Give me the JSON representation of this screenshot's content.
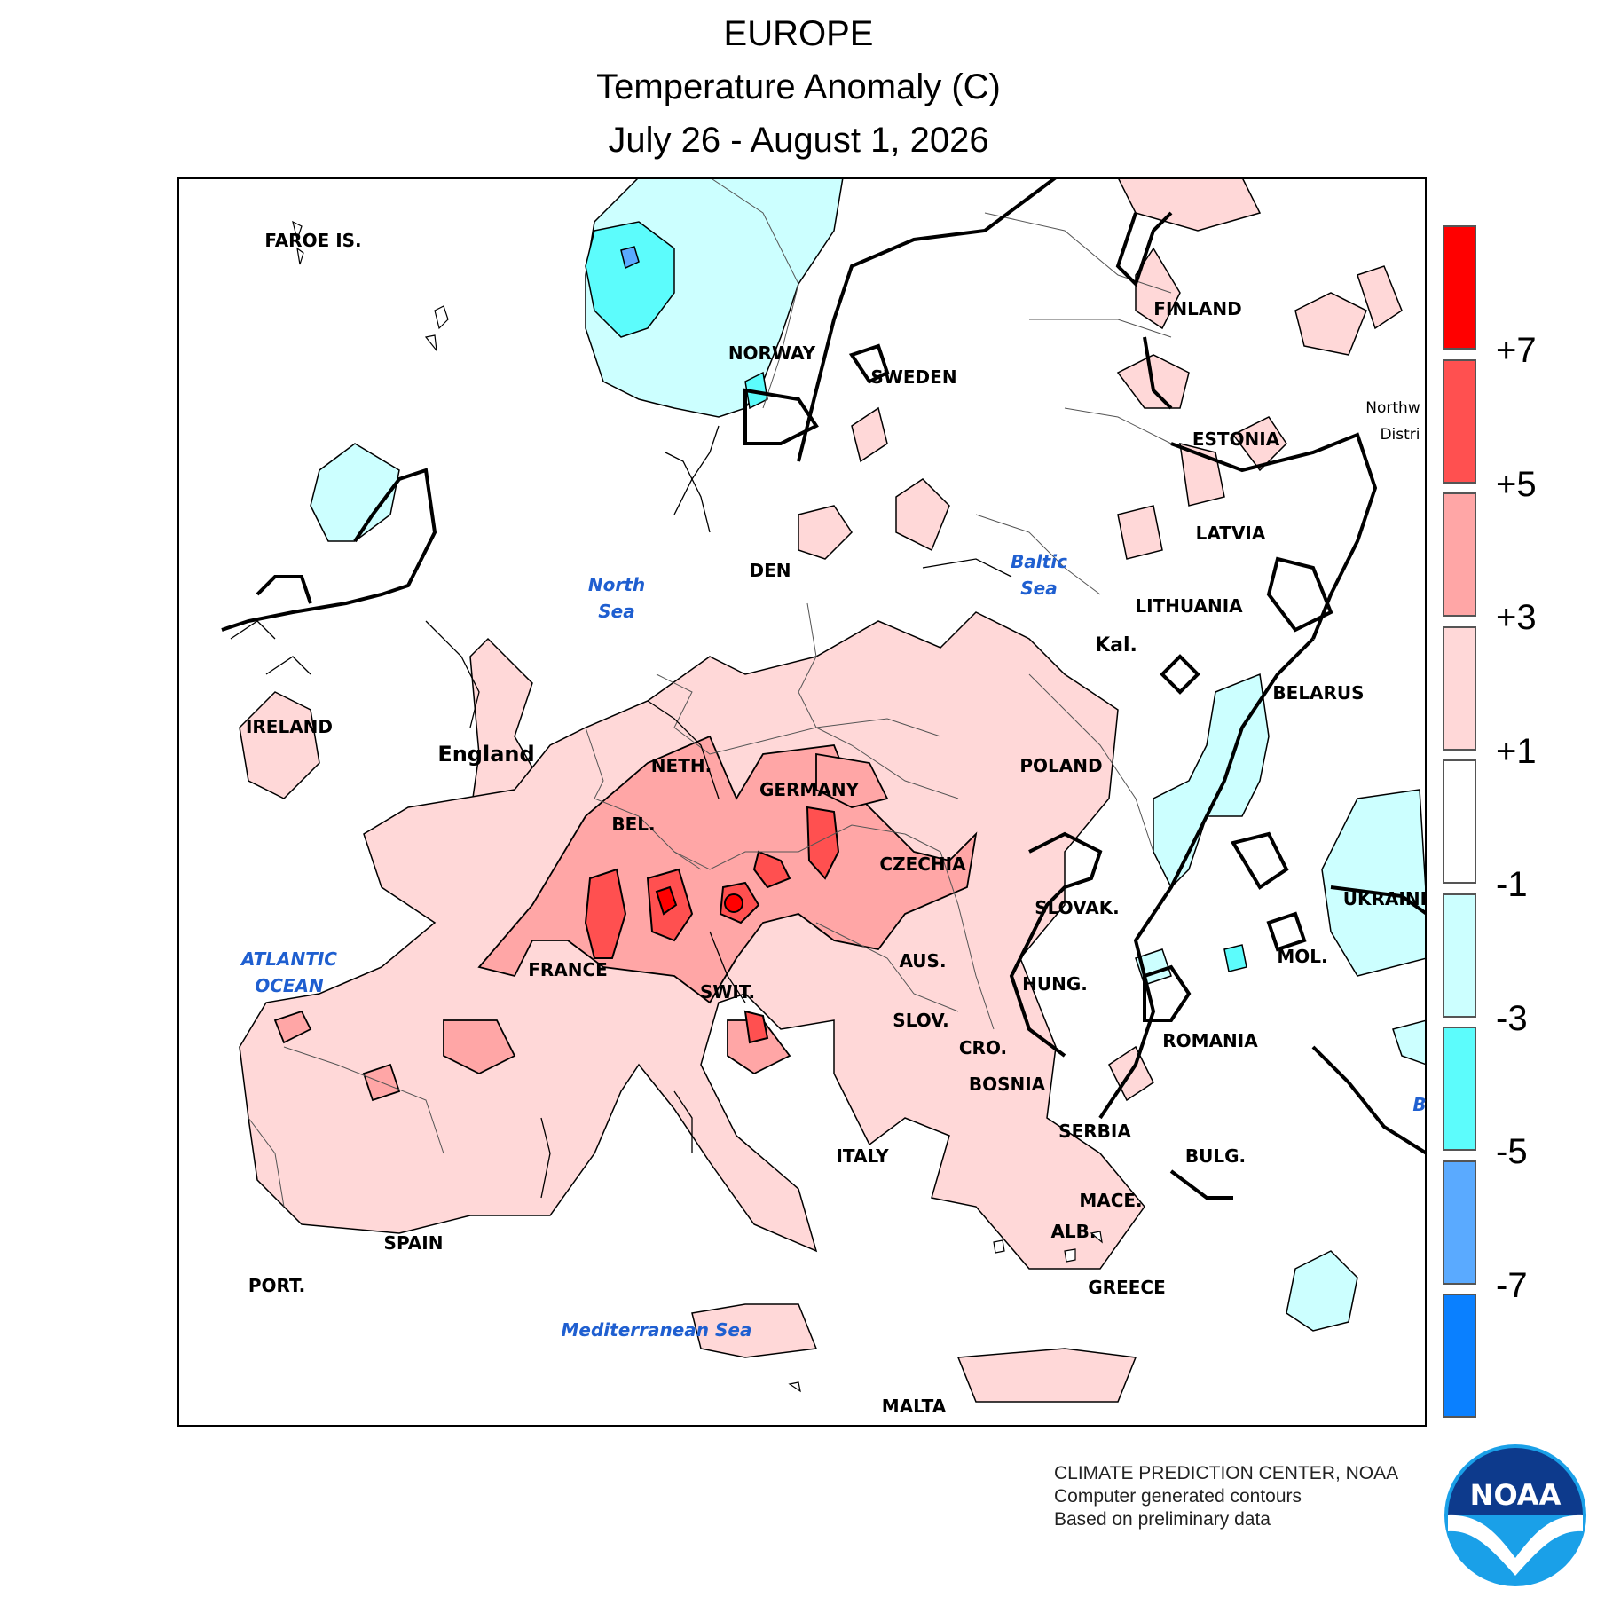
{
  "title": {
    "region": "EUROPE",
    "variable": "Temperature Anomaly (C)",
    "period": "July 26 - August 1, 2026"
  },
  "legend": {
    "bins": [
      {
        "color": "#ff0000"
      },
      {
        "color": "#ff5050"
      },
      {
        "color": "#ffa6a6"
      },
      {
        "color": "#ffd8d8"
      },
      {
        "color": "#ffffff"
      },
      {
        "color": "#ccffff"
      },
      {
        "color": "#5cfcfc"
      },
      {
        "color": "#5aaaff"
      },
      {
        "color": "#0a80ff"
      }
    ],
    "labels": [
      "+7",
      "+5",
      "+3",
      "+1",
      "-1",
      "-3",
      "-5",
      "-7"
    ]
  },
  "map_labels": {
    "faroe": "FAROE IS.",
    "norway": "NORWAY",
    "sweden": "SWEDEN",
    "finland": "FINLAND",
    "estonia": "ESTONIA",
    "latvia": "LATVIA",
    "lithuania": "LITHUANIA",
    "kal": "Kal.",
    "belarus": "BELARUS",
    "northwest": "Northw",
    "district": "Distri",
    "den": "DEN",
    "ireland": "IRELAND",
    "england": "England",
    "neth": "NETH.",
    "bel": "BEL.",
    "germany": "GERMANY",
    "poland": "POLAND",
    "czechia": "CZECHIA",
    "slovak": "SLOVAK.",
    "ukraine": "UKRAINE",
    "france": "FRANCE",
    "swit": "SWIT.",
    "aus": "AUS.",
    "hung": "HUNG.",
    "mol": "MOL.",
    "slov": "SLOV.",
    "cro": "CRO.",
    "bosnia": "BOSNIA",
    "romania": "ROMANIA",
    "serbia": "SERBIA",
    "bulg": "BULG.",
    "mace": "MACE.",
    "alb": "ALB.",
    "greece": "GREECE",
    "italy": "ITALY",
    "spain": "SPAIN",
    "port": "PORT.",
    "malta": "MALTA",
    "b": "B"
  },
  "water_labels": {
    "north_sea_1": "North",
    "north_sea_2": "Sea",
    "baltic_1": "Baltic",
    "baltic_2": "Sea",
    "atlantic_1": "ATLANTIC",
    "atlantic_2": "OCEAN",
    "med": "Mediterranean Sea"
  },
  "credits": {
    "line1": "CLIMATE PREDICTION CENTER, NOAA",
    "line2": "Computer generated contours",
    "line3": "Based on preliminary data"
  },
  "logo": {
    "text": "NOAA"
  }
}
